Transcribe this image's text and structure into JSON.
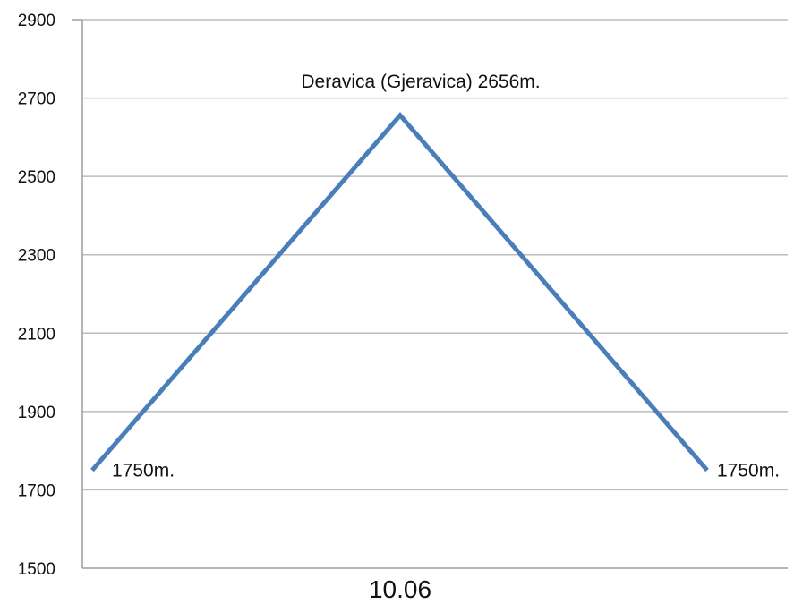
{
  "chart_data": {
    "type": "line",
    "title": "",
    "xlabel": "",
    "ylabel": "",
    "ylim": [
      1500,
      2900
    ],
    "yticks": [
      1500,
      1700,
      1900,
      2100,
      2300,
      2500,
      2700,
      2900
    ],
    "grid": true,
    "category_label": "10.06",
    "series": [
      {
        "values": [
          1750,
          2656,
          1750
        ],
        "point_labels": [
          "1750m.",
          "Deravica (Gjeravica) 2656m.",
          "1750m."
        ],
        "color": "#4a7ebb"
      }
    ]
  },
  "colors": {
    "line": "#4a7ebb",
    "grid": "#bdbdbd",
    "axis": "#9e9e9e",
    "text": "#111111"
  }
}
